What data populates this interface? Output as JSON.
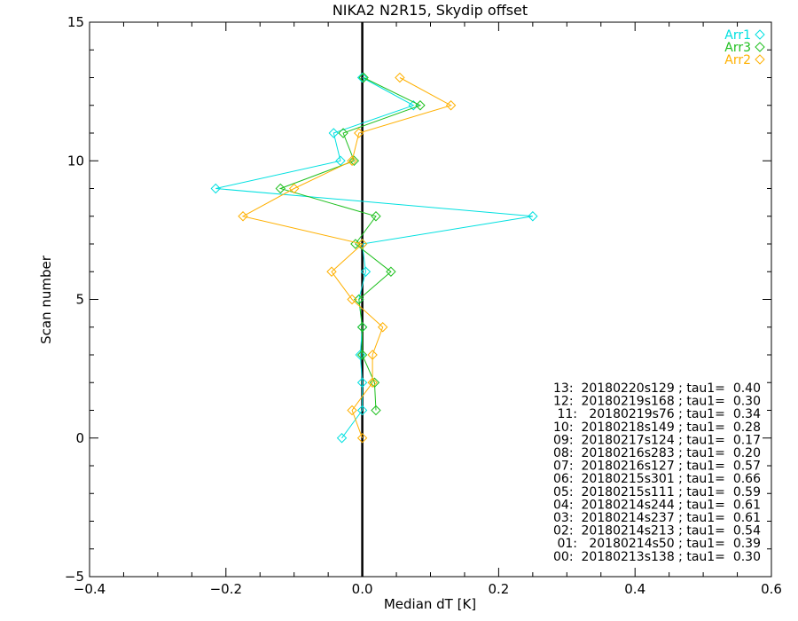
{
  "chart_data": {
    "type": "line",
    "title": "NIKA2 N2R15, Skydip offset",
    "xlabel": "Median dT [K]",
    "ylabel": "Scan number",
    "xlim": [
      -0.4,
      0.6
    ],
    "ylim": [
      -5,
      15
    ],
    "xticks": [
      -0.4,
      -0.2,
      0.0,
      0.2,
      0.4,
      0.6
    ],
    "xtick_labels": [
      "−0.4",
      "−0.2",
      "0.0",
      "0.2",
      "0.4",
      "0.6"
    ],
    "yticks": [
      -5,
      0,
      5,
      10,
      15
    ],
    "ytick_labels": [
      "−5",
      "0",
      "5",
      "10",
      "15"
    ],
    "grid": false,
    "legend_position": "top-right",
    "series": [
      {
        "name": "Arr1",
        "color": "#00e0e0",
        "marker": "diamond",
        "points": [
          {
            "x": -0.03,
            "y": 0
          },
          {
            "x": 0.0,
            "y": 1
          },
          {
            "x": 0.0,
            "y": 2
          },
          {
            "x": -0.003,
            "y": 3
          },
          {
            "x": 0.0,
            "y": 4
          },
          {
            "x": -0.005,
            "y": 5
          },
          {
            "x": 0.005,
            "y": 6
          },
          {
            "x": 0.0,
            "y": 7
          },
          {
            "x": 0.25,
            "y": 8
          },
          {
            "x": -0.215,
            "y": 9
          },
          {
            "x": -0.032,
            "y": 10
          },
          {
            "x": -0.042,
            "y": 11
          },
          {
            "x": 0.075,
            "y": 12
          },
          {
            "x": 0.0,
            "y": 13
          }
        ]
      },
      {
        "name": "Arr3",
        "color": "#20c020",
        "marker": "diamond",
        "points": [
          {
            "x": 0.02,
            "y": 1
          },
          {
            "x": 0.018,
            "y": 2
          },
          {
            "x": 0.0,
            "y": 3
          },
          {
            "x": 0.0,
            "y": 4
          },
          {
            "x": -0.005,
            "y": 5
          },
          {
            "x": 0.042,
            "y": 6
          },
          {
            "x": -0.01,
            "y": 7
          },
          {
            "x": 0.02,
            "y": 8
          },
          {
            "x": -0.12,
            "y": 9
          },
          {
            "x": -0.012,
            "y": 10
          },
          {
            "x": -0.028,
            "y": 11
          },
          {
            "x": 0.085,
            "y": 12
          },
          {
            "x": 0.002,
            "y": 13
          }
        ]
      },
      {
        "name": "Arr2",
        "color": "#ffb000",
        "marker": "diamond",
        "points": [
          {
            "x": 0.0,
            "y": 0
          },
          {
            "x": -0.015,
            "y": 1
          },
          {
            "x": 0.015,
            "y": 2
          },
          {
            "x": 0.015,
            "y": 3
          },
          {
            "x": 0.03,
            "y": 4
          },
          {
            "x": -0.015,
            "y": 5
          },
          {
            "x": -0.045,
            "y": 6
          },
          {
            "x": 0.0,
            "y": 7
          },
          {
            "x": -0.175,
            "y": 8
          },
          {
            "x": -0.1,
            "y": 9
          },
          {
            "x": -0.015,
            "y": 10
          },
          {
            "x": -0.005,
            "y": 11
          },
          {
            "x": 0.13,
            "y": 12
          },
          {
            "x": 0.055,
            "y": 13
          }
        ]
      }
    ],
    "annotations": [
      "13:  20180220s129 ; tau1=  0.40",
      "12:  20180219s168 ; tau1=  0.30",
      "11:   20180219s76 ; tau1=  0.34",
      "10:  20180218s149 ; tau1=  0.28",
      "09:  20180217s124 ; tau1=  0.17",
      "08:  20180216s283 ; tau1=  0.20",
      "07:  20180216s127 ; tau1=  0.57",
      "06:  20180215s301 ; tau1=  0.66",
      "05:  20180215s111 ; tau1=  0.59",
      "04:  20180214s244 ; tau1=  0.61",
      "03:  20180214s237 ; tau1=  0.61",
      "02:  20180214s213 ; tau1=  0.54",
      "01:   20180214s50 ; tau1=  0.39",
      "00:  20180213s138 ; tau1=  0.30"
    ]
  }
}
